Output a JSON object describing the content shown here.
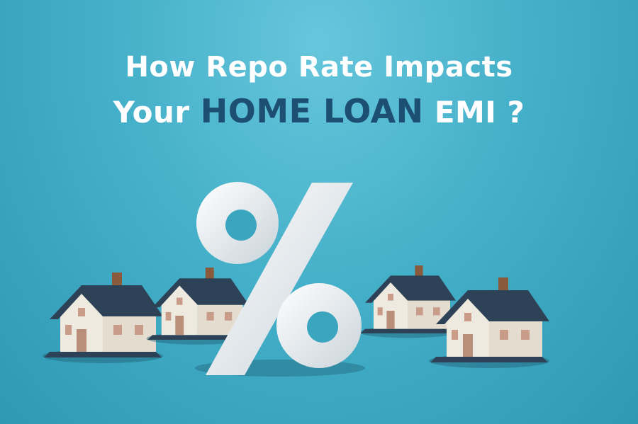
{
  "headline": {
    "line1": "How Repo Rate Impacts",
    "line2_prefix": "Your",
    "line2_highlight": "HOME LOAN",
    "line2_suffix": "EMI ?"
  },
  "colors": {
    "background": "#45b0c9",
    "title_text": "#ffffff",
    "highlight_text": "#1c4f72",
    "roof": "#2e4257",
    "wall": "#efeadf",
    "chimney": "#8a5a3c"
  },
  "icons": [
    "percent-sign",
    "house"
  ]
}
